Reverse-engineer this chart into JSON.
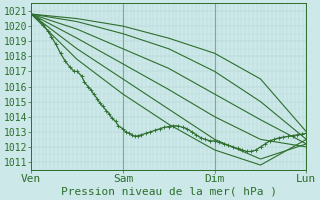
{
  "xlabel": "Pression niveau de la mer( hPa )",
  "bg_color": "#cce8e8",
  "line_color": "#2d6e2d",
  "grid_color_minor": "#b8d8d8",
  "grid_color_major": "#a0c8c8",
  "ylim": [
    1010.5,
    1021.5
  ],
  "yticks": [
    1011,
    1012,
    1013,
    1014,
    1015,
    1016,
    1017,
    1018,
    1019,
    1020,
    1021
  ],
  "xtick_labels": [
    "Ven",
    "Sam",
    "Dim",
    "Lun"
  ],
  "xtick_positions": [
    0,
    1,
    2,
    3
  ],
  "xlim": [
    0,
    3
  ],
  "fan_lines": [
    [
      [
        0.0,
        1020.8
      ],
      [
        0.5,
        1020.5
      ],
      [
        1.0,
        1020.0
      ],
      [
        1.5,
        1019.2
      ],
      [
        2.0,
        1018.2
      ],
      [
        2.5,
        1016.5
      ],
      [
        3.0,
        1013.0
      ]
    ],
    [
      [
        0.0,
        1020.8
      ],
      [
        0.5,
        1020.3
      ],
      [
        1.0,
        1019.5
      ],
      [
        1.5,
        1018.5
      ],
      [
        2.0,
        1017.0
      ],
      [
        2.5,
        1015.0
      ],
      [
        3.0,
        1012.5
      ]
    ],
    [
      [
        0.0,
        1020.8
      ],
      [
        0.5,
        1019.8
      ],
      [
        1.0,
        1018.5
      ],
      [
        1.5,
        1017.2
      ],
      [
        2.0,
        1015.5
      ],
      [
        2.5,
        1013.8
      ],
      [
        3.0,
        1012.2
      ]
    ],
    [
      [
        0.0,
        1020.8
      ],
      [
        0.5,
        1019.2
      ],
      [
        1.0,
        1017.5
      ],
      [
        1.5,
        1015.8
      ],
      [
        2.0,
        1014.0
      ],
      [
        2.5,
        1012.5
      ],
      [
        3.0,
        1012.0
      ]
    ],
    [
      [
        0.0,
        1020.8
      ],
      [
        0.5,
        1018.5
      ],
      [
        1.0,
        1016.5
      ],
      [
        1.5,
        1014.5
      ],
      [
        2.0,
        1012.5
      ],
      [
        2.5,
        1011.2
      ],
      [
        3.0,
        1012.2
      ]
    ],
    [
      [
        0.0,
        1020.8
      ],
      [
        0.5,
        1017.8
      ],
      [
        1.0,
        1015.5
      ],
      [
        1.5,
        1013.5
      ],
      [
        2.0,
        1011.8
      ],
      [
        2.5,
        1010.8
      ],
      [
        3.0,
        1012.5
      ]
    ]
  ],
  "marker_line": [
    [
      0.0,
      1020.8
    ],
    [
      0.07,
      1020.5
    ],
    [
      0.13,
      1020.1
    ],
    [
      0.18,
      1019.7
    ],
    [
      0.22,
      1019.3
    ],
    [
      0.27,
      1018.8
    ],
    [
      0.32,
      1018.2
    ],
    [
      0.37,
      1017.7
    ],
    [
      0.42,
      1017.3
    ],
    [
      0.47,
      1017.0
    ],
    [
      0.5,
      1017.0
    ],
    [
      0.55,
      1016.7
    ],
    [
      0.58,
      1016.3
    ],
    [
      0.62,
      1016.0
    ],
    [
      0.65,
      1015.8
    ],
    [
      0.68,
      1015.5
    ],
    [
      0.72,
      1015.2
    ],
    [
      0.75,
      1014.9
    ],
    [
      0.78,
      1014.7
    ],
    [
      0.82,
      1014.4
    ],
    [
      0.85,
      1014.2
    ],
    [
      0.88,
      1013.9
    ],
    [
      0.92,
      1013.7
    ],
    [
      0.95,
      1013.4
    ],
    [
      1.0,
      1013.2
    ],
    [
      1.03,
      1013.0
    ],
    [
      1.07,
      1012.9
    ],
    [
      1.1,
      1012.8
    ],
    [
      1.13,
      1012.7
    ],
    [
      1.17,
      1012.75
    ],
    [
      1.2,
      1012.8
    ],
    [
      1.25,
      1012.9
    ],
    [
      1.3,
      1013.0
    ],
    [
      1.35,
      1013.1
    ],
    [
      1.4,
      1013.2
    ],
    [
      1.45,
      1013.3
    ],
    [
      1.5,
      1013.35
    ],
    [
      1.55,
      1013.4
    ],
    [
      1.6,
      1013.4
    ],
    [
      1.65,
      1013.3
    ],
    [
      1.7,
      1013.2
    ],
    [
      1.75,
      1013.0
    ],
    [
      1.8,
      1012.8
    ],
    [
      1.85,
      1012.6
    ],
    [
      1.9,
      1012.5
    ],
    [
      1.95,
      1012.4
    ],
    [
      2.0,
      1012.4
    ],
    [
      2.05,
      1012.3
    ],
    [
      2.1,
      1012.2
    ],
    [
      2.15,
      1012.1
    ],
    [
      2.2,
      1012.0
    ],
    [
      2.25,
      1011.9
    ],
    [
      2.3,
      1011.8
    ],
    [
      2.35,
      1011.7
    ],
    [
      2.4,
      1011.7
    ],
    [
      2.45,
      1011.8
    ],
    [
      2.5,
      1012.0
    ],
    [
      2.55,
      1012.2
    ],
    [
      2.6,
      1012.4
    ],
    [
      2.65,
      1012.5
    ],
    [
      2.7,
      1012.6
    ],
    [
      2.75,
      1012.65
    ],
    [
      2.8,
      1012.7
    ],
    [
      2.85,
      1012.75
    ],
    [
      2.9,
      1012.8
    ],
    [
      2.95,
      1012.85
    ],
    [
      3.0,
      1012.9
    ]
  ],
  "vline_positions": [
    1.0,
    2.0,
    3.0
  ],
  "xlabel_fontsize": 8,
  "ytick_fontsize": 7,
  "xtick_fontsize": 8
}
